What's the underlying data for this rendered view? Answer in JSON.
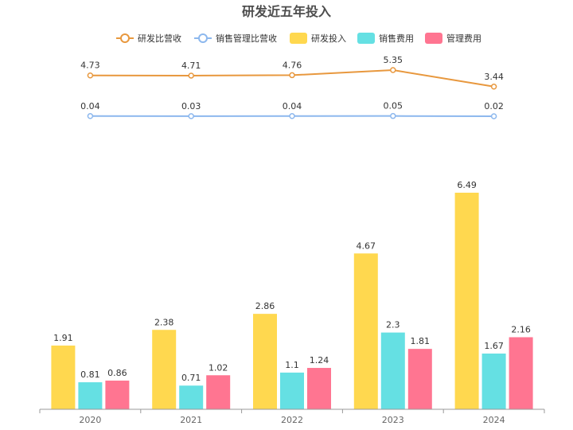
{
  "chart_data": {
    "type": "bar",
    "title": "研发近五年投入",
    "categories": [
      "2020",
      "2021",
      "2022",
      "2023",
      "2024"
    ],
    "bar_series": [
      {
        "name": "研发投入",
        "values": [
          1.91,
          2.38,
          2.86,
          4.67,
          6.49
        ],
        "color": "#FFD84F"
      },
      {
        "name": "销售费用",
        "values": [
          0.81,
          0.71,
          1.1,
          2.3,
          1.67
        ],
        "color": "#65E0E3"
      },
      {
        "name": "管理费用",
        "values": [
          0.86,
          1.02,
          1.24,
          1.81,
          2.16
        ],
        "color": "#FF7591"
      }
    ],
    "line_series": [
      {
        "name": "研发比营收",
        "values": [
          4.73,
          4.71,
          4.76,
          5.35,
          3.44
        ],
        "color": "#E8983E"
      },
      {
        "name": "销售管理比营收",
        "values": [
          0.04,
          0.03,
          0.04,
          0.05,
          0.02
        ],
        "color": "#8DB8EE"
      }
    ],
    "legend_position": "top",
    "grid": false
  }
}
